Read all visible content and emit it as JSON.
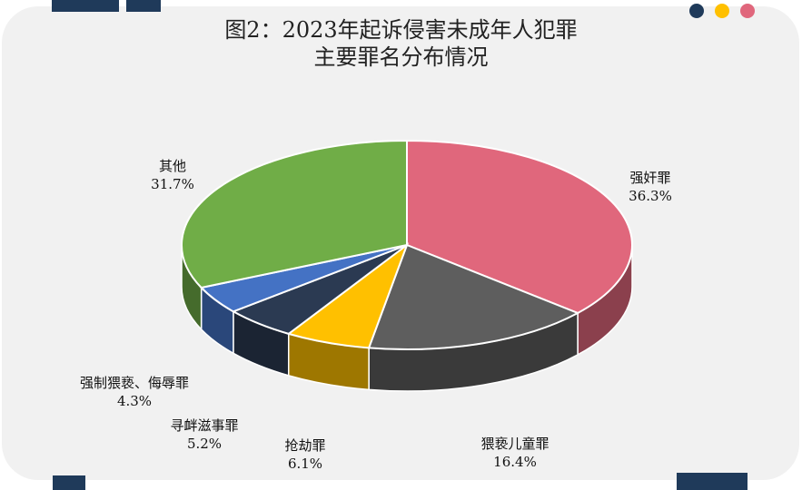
{
  "chart_data": {
    "type": "pie",
    "title": "图2：2023年起诉侵害未成年人犯罪",
    "subtitle": "主要罪名分布情况",
    "slices": [
      {
        "label": "强奸罪",
        "value": 36.3,
        "display": "36.3%",
        "color": "#e0677c"
      },
      {
        "label": "猥亵儿童罪",
        "value": 16.4,
        "display": "16.4%",
        "color": "#5e5e5e"
      },
      {
        "label": "抢劫罪",
        "value": 6.1,
        "display": "6.1%",
        "color": "#ffc000"
      },
      {
        "label": "寻衅滋事罪",
        "value": 5.2,
        "display": "5.2%",
        "color": "#2b3a52"
      },
      {
        "label": "强制猥亵、侮辱罪",
        "value": 4.3,
        "display": "4.3%",
        "color": "#4472c4"
      },
      {
        "label": "其他",
        "value": 31.7,
        "display": "31.7%",
        "color": "#70ad47"
      }
    ],
    "legend": "none",
    "style": "3d"
  },
  "decor": {
    "dot_colors": [
      "#1f3a5a",
      "#ffc000",
      "#e0677c"
    ],
    "bar_color": "#1f3a5a",
    "card_color": "#f1f1f1"
  }
}
